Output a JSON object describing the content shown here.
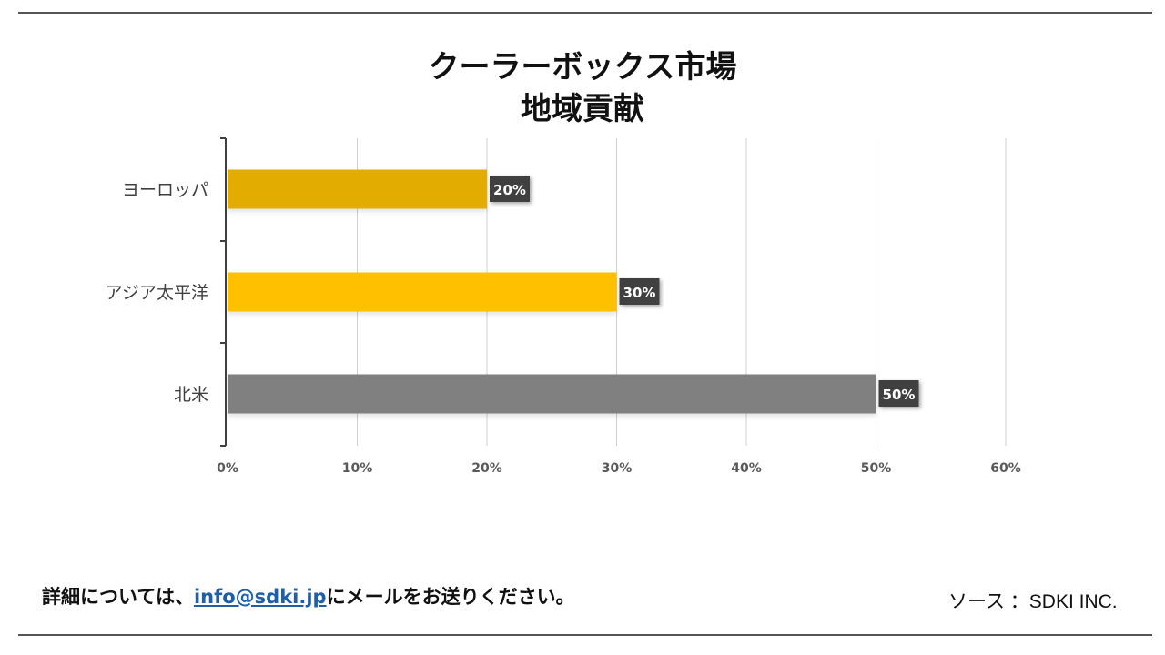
{
  "chart_data": {
    "type": "bar",
    "orientation": "horizontal",
    "title": [
      "クーラーボックス市場",
      "地域貢献"
    ],
    "categories": [
      "ヨーロッパ",
      "アジア太平洋",
      "北米"
    ],
    "values": [
      20,
      30,
      50
    ],
    "value_labels": [
      "20%",
      "30%",
      "50%"
    ],
    "bar_colors": [
      "#E2AC00",
      "#FFC000",
      "#808080"
    ],
    "x_ticks": [
      "0%",
      "10%",
      "20%",
      "30%",
      "40%",
      "50%",
      "60%"
    ],
    "xlim": [
      0,
      60
    ],
    "xlabel": "",
    "ylabel": "",
    "grid": true,
    "legend": "none"
  },
  "footer": {
    "note_prefix": "詳細については、",
    "email": "info@sdki.jp",
    "note_suffix": "にメールをお送りください。",
    "source": "ソース ：SDKI INC."
  }
}
